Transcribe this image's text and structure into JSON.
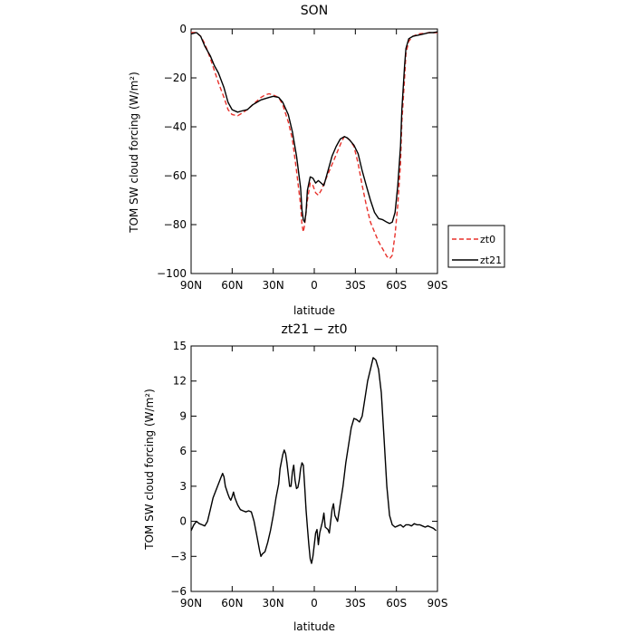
{
  "chart_data": [
    {
      "type": "line",
      "title": "SON",
      "xlabel": "latitude",
      "ylabel": "TOM SW cloud forcing (W/m²)",
      "xlim": [
        90,
        -90
      ],
      "ylim": [
        -100,
        0
      ],
      "x_ticks": [
        {
          "v": 90,
          "label": "90N"
        },
        {
          "v": 60,
          "label": "60N"
        },
        {
          "v": 30,
          "label": "30N"
        },
        {
          "v": 0,
          "label": "0"
        },
        {
          "v": -30,
          "label": "30S"
        },
        {
          "v": -60,
          "label": "60S"
        },
        {
          "v": -90,
          "label": "90S"
        }
      ],
      "y_ticks": [
        {
          "v": 0,
          "label": "0"
        },
        {
          "v": -20,
          "label": "−20"
        },
        {
          "v": -40,
          "label": "−40"
        },
        {
          "v": -60,
          "label": "−60"
        },
        {
          "v": -80,
          "label": "−80"
        },
        {
          "v": -100,
          "label": "−100"
        }
      ],
      "legend_position": "outside-right",
      "series": [
        {
          "name": "zt0",
          "color": "#e8302a",
          "dash": "dashed",
          "points": [
            [
              90,
              -1.5
            ],
            [
              86,
              -1.5
            ],
            [
              83,
              -3
            ],
            [
              80,
              -6
            ],
            [
              76,
              -12
            ],
            [
              73,
              -17
            ],
            [
              70,
              -22
            ],
            [
              66,
              -28
            ],
            [
              63,
              -33
            ],
            [
              60,
              -35
            ],
            [
              56,
              -35.5
            ],
            [
              53,
              -34.5
            ],
            [
              49,
              -33
            ],
            [
              45,
              -31
            ],
            [
              42,
              -29.5
            ],
            [
              39,
              -28
            ],
            [
              36,
              -27
            ],
            [
              33,
              -26.5
            ],
            [
              30,
              -27
            ],
            [
              26,
              -28
            ],
            [
              23,
              -31
            ],
            [
              19,
              -38
            ],
            [
              16,
              -45
            ],
            [
              13,
              -58
            ],
            [
              10,
              -72
            ],
            [
              9,
              -80
            ],
            [
              8,
              -83
            ],
            [
              7,
              -80
            ],
            [
              5,
              -70
            ],
            [
              3,
              -63
            ],
            [
              1,
              -64
            ],
            [
              -1,
              -67
            ],
            [
              -3,
              -68
            ],
            [
              -5,
              -66
            ],
            [
              -8,
              -62
            ],
            [
              -11,
              -58
            ],
            [
              -14,
              -54
            ],
            [
              -17,
              -50
            ],
            [
              -20,
              -46
            ],
            [
              -22,
              -44
            ],
            [
              -24,
              -44.5
            ],
            [
              -26,
              -45.5
            ],
            [
              -29,
              -48
            ],
            [
              -32,
              -55
            ],
            [
              -35,
              -64
            ],
            [
              -38,
              -72
            ],
            [
              -41,
              -79
            ],
            [
              -44,
              -83
            ],
            [
              -47,
              -87
            ],
            [
              -50,
              -90
            ],
            [
              -53,
              -93
            ],
            [
              -55,
              -94
            ],
            [
              -57,
              -92.5
            ],
            [
              -59,
              -84
            ],
            [
              -61,
              -72
            ],
            [
              -63,
              -55
            ],
            [
              -64,
              -38
            ],
            [
              -66,
              -20
            ],
            [
              -67,
              -10
            ],
            [
              -69,
              -5
            ],
            [
              -72,
              -3
            ],
            [
              -76,
              -2
            ],
            [
              -80,
              -1.8
            ],
            [
              -84,
              -1.5
            ],
            [
              -87,
              -1.5
            ],
            [
              -90,
              -1.5
            ]
          ]
        },
        {
          "name": "zt21",
          "color": "#000000",
          "dash": "solid",
          "points": [
            [
              90,
              -2
            ],
            [
              86,
              -1.5
            ],
            [
              83,
              -3
            ],
            [
              80,
              -7
            ],
            [
              76,
              -11
            ],
            [
              73,
              -15
            ],
            [
              70,
              -18
            ],
            [
              66,
              -24
            ],
            [
              63,
              -30
            ],
            [
              60,
              -33
            ],
            [
              56,
              -34
            ],
            [
              53,
              -33.5
            ],
            [
              49,
              -33
            ],
            [
              45,
              -31
            ],
            [
              42,
              -30
            ],
            [
              39,
              -29
            ],
            [
              36,
              -28.5
            ],
            [
              33,
              -28
            ],
            [
              30,
              -27.5
            ],
            [
              26,
              -28
            ],
            [
              23,
              -30
            ],
            [
              19,
              -35
            ],
            [
              16,
              -42
            ],
            [
              13,
              -52
            ],
            [
              10,
              -65
            ],
            [
              9,
              -74
            ],
            [
              8,
              -78
            ],
            [
              7,
              -79
            ],
            [
              6,
              -75
            ],
            [
              5,
              -66
            ],
            [
              3,
              -60.5
            ],
            [
              1,
              -61
            ],
            [
              -1,
              -63
            ],
            [
              -3,
              -62
            ],
            [
              -5,
              -63
            ],
            [
              -7,
              -64
            ],
            [
              -10,
              -58
            ],
            [
              -13,
              -52
            ],
            [
              -16,
              -48
            ],
            [
              -19,
              -45
            ],
            [
              -22,
              -44
            ],
            [
              -24,
              -44.5
            ],
            [
              -26,
              -45.5
            ],
            [
              -29,
              -47.5
            ],
            [
              -32,
              -51
            ],
            [
              -35,
              -58
            ],
            [
              -38,
              -64
            ],
            [
              -41,
              -70
            ],
            [
              -44,
              -75
            ],
            [
              -47,
              -77.5
            ],
            [
              -50,
              -78
            ],
            [
              -53,
              -79
            ],
            [
              -55,
              -79.5
            ],
            [
              -57,
              -79
            ],
            [
              -59,
              -75
            ],
            [
              -61,
              -64
            ],
            [
              -63,
              -48
            ],
            [
              -64,
              -33
            ],
            [
              -66,
              -15
            ],
            [
              -67,
              -8
            ],
            [
              -69,
              -4
            ],
            [
              -72,
              -3
            ],
            [
              -76,
              -2.5
            ],
            [
              -80,
              -2
            ],
            [
              -84,
              -1.5
            ],
            [
              -87,
              -1.5
            ],
            [
              -90,
              -1.2
            ]
          ]
        }
      ]
    },
    {
      "type": "line",
      "title": "zt21 − zt0",
      "xlabel": "latitude",
      "ylabel": "TOM SW cloud forcing (W/m²)",
      "xlim": [
        90,
        -90
      ],
      "ylim": [
        -6,
        15
      ],
      "x_ticks": [
        {
          "v": 90,
          "label": "90N"
        },
        {
          "v": 60,
          "label": "60N"
        },
        {
          "v": 30,
          "label": "30N"
        },
        {
          "v": 0,
          "label": "0"
        },
        {
          "v": -30,
          "label": "30S"
        },
        {
          "v": -60,
          "label": "60S"
        },
        {
          "v": -90,
          "label": "90S"
        }
      ],
      "y_ticks": [
        {
          "v": 15,
          "label": "15"
        },
        {
          "v": 12,
          "label": "12"
        },
        {
          "v": 9,
          "label": "9"
        },
        {
          "v": 6,
          "label": "6"
        },
        {
          "v": 3,
          "label": "3"
        },
        {
          "v": 0,
          "label": "0"
        },
        {
          "v": -3,
          "label": "−3"
        },
        {
          "v": -6,
          "label": "−6"
        }
      ],
      "series": [
        {
          "color": "#000000",
          "dash": "solid",
          "points": [
            [
              90,
              -0.8
            ],
            [
              88,
              -0.3
            ],
            [
              86,
              0
            ],
            [
              84,
              -0.2
            ],
            [
              82,
              -0.3
            ],
            [
              80,
              -0.4
            ],
            [
              78,
              0
            ],
            [
              76,
              1
            ],
            [
              74,
              2
            ],
            [
              72,
              2.6
            ],
            [
              70,
              3.2
            ],
            [
              68,
              3.8
            ],
            [
              67,
              4.1
            ],
            [
              66,
              3.8
            ],
            [
              65,
              3
            ],
            [
              63,
              2.3
            ],
            [
              62,
              2
            ],
            [
              61,
              1.8
            ],
            [
              60,
              2.1
            ],
            [
              59,
              2.5
            ],
            [
              58,
              2
            ],
            [
              56,
              1.4
            ],
            [
              54,
              1
            ],
            [
              52,
              0.9
            ],
            [
              50,
              0.8
            ],
            [
              48,
              0.9
            ],
            [
              46,
              0.8
            ],
            [
              44,
              0
            ],
            [
              42,
              -1.2
            ],
            [
              40,
              -2.5
            ],
            [
              39,
              -3
            ],
            [
              38,
              -2.8
            ],
            [
              36,
              -2.6
            ],
            [
              34,
              -1.8
            ],
            [
              32,
              -0.8
            ],
            [
              30,
              0.5
            ],
            [
              28,
              2
            ],
            [
              26,
              3.2
            ],
            [
              25,
              4.5
            ],
            [
              23,
              5.7
            ],
            [
              22,
              6.1
            ],
            [
              21,
              5.8
            ],
            [
              20,
              5
            ],
            [
              19,
              4
            ],
            [
              18,
              3
            ],
            [
              17,
              3
            ],
            [
              16,
              4.2
            ],
            [
              15,
              4.8
            ],
            [
              14,
              3.5
            ],
            [
              13,
              2.8
            ],
            [
              12,
              2.9
            ],
            [
              11,
              3.5
            ],
            [
              10,
              4.5
            ],
            [
              9,
              5
            ],
            [
              8,
              4.8
            ],
            [
              7,
              3
            ],
            [
              6,
              1
            ],
            [
              5,
              -0.5
            ],
            [
              4,
              -2
            ],
            [
              3,
              -3.2
            ],
            [
              2,
              -3.6
            ],
            [
              1,
              -3
            ],
            [
              0,
              -2
            ],
            [
              -1,
              -1
            ],
            [
              -2,
              -0.7
            ],
            [
              -3,
              -2
            ],
            [
              -4,
              -1
            ],
            [
              -6,
              0
            ],
            [
              -7,
              0.7
            ],
            [
              -8,
              -0.5
            ],
            [
              -10,
              -0.7
            ],
            [
              -11,
              -1
            ],
            [
              -13,
              1
            ],
            [
              -14,
              1.5
            ],
            [
              -15,
              0.5
            ],
            [
              -17,
              0
            ],
            [
              -19,
              1.5
            ],
            [
              -21,
              3
            ],
            [
              -23,
              5
            ],
            [
              -25,
              6.5
            ],
            [
              -27,
              8
            ],
            [
              -29,
              8.8
            ],
            [
              -31,
              8.7
            ],
            [
              -33,
              8.5
            ],
            [
              -35,
              9
            ],
            [
              -37,
              10.5
            ],
            [
              -39,
              12
            ],
            [
              -41,
              13
            ],
            [
              -43,
              14
            ],
            [
              -45,
              13.8
            ],
            [
              -47,
              13
            ],
            [
              -49,
              11
            ],
            [
              -51,
              7
            ],
            [
              -53,
              3
            ],
            [
              -55,
              0.5
            ],
            [
              -57,
              -0.3
            ],
            [
              -59,
              -0.5
            ],
            [
              -61,
              -0.4
            ],
            [
              -63,
              -0.3
            ],
            [
              -65,
              -0.5
            ],
            [
              -67,
              -0.3
            ],
            [
              -69,
              -0.3
            ],
            [
              -71,
              -0.4
            ],
            [
              -73,
              -0.2
            ],
            [
              -75,
              -0.3
            ],
            [
              -77,
              -0.3
            ],
            [
              -79,
              -0.4
            ],
            [
              -81,
              -0.5
            ],
            [
              -83,
              -0.4
            ],
            [
              -85,
              -0.5
            ],
            [
              -87,
              -0.6
            ],
            [
              -89,
              -0.8
            ]
          ]
        }
      ]
    }
  ]
}
